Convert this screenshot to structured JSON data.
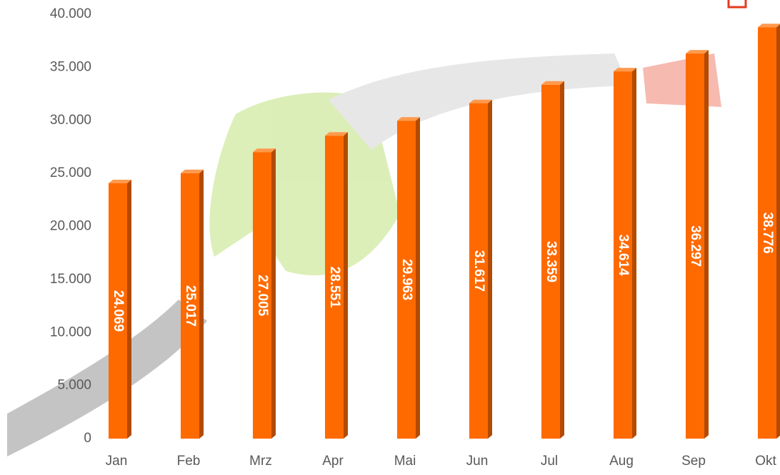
{
  "chart_data": {
    "type": "bar",
    "categories": [
      "Jan",
      "Feb",
      "Mrz",
      "Apr",
      "Mai",
      "Jun",
      "Jul",
      "Aug",
      "Sep",
      "Okt"
    ],
    "values": [
      24069,
      25017,
      27005,
      28551,
      29963,
      31617,
      33359,
      34614,
      36297,
      38776
    ],
    "value_labels": [
      "24.069",
      "25.017",
      "27.005",
      "28.551",
      "29.963",
      "31.617",
      "33.359",
      "34.614",
      "36.297",
      "38.776"
    ],
    "color": "#ff6a00",
    "ylim": [
      0,
      40000
    ],
    "yticks": [
      0,
      {
        "value": 5000,
        "label": "5.000"
      },
      {
        "value": 10000,
        "label": "10.000"
      },
      {
        "value": 15000,
        "label": "15.000"
      },
      {
        "value": 20000,
        "label": "20.000"
      },
      {
        "value": 25000,
        "label": "25.000"
      },
      {
        "value": 30000,
        "label": "30.000"
      },
      {
        "value": 35000,
        "label": "35.000"
      },
      {
        "value": 40000,
        "label": "40.000"
      }
    ],
    "grid": false
  }
}
